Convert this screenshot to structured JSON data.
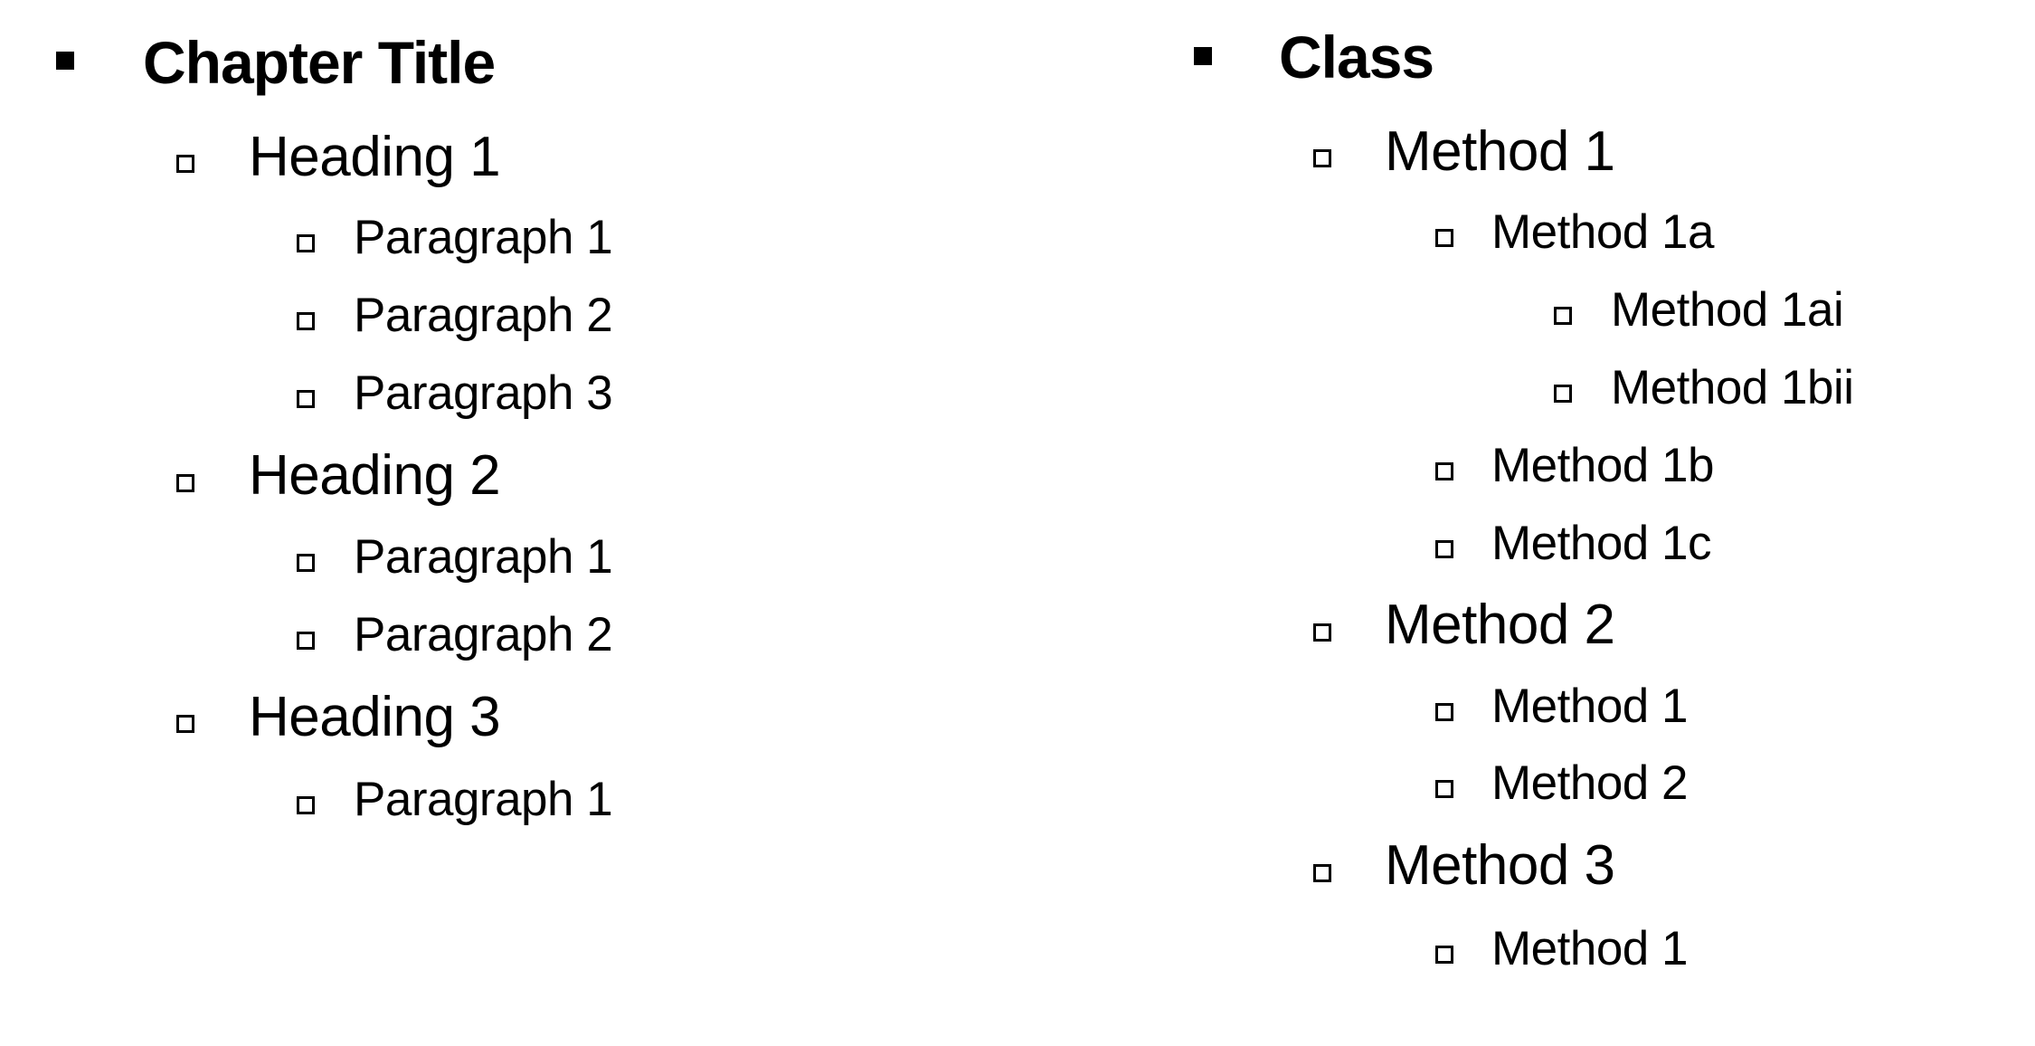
{
  "left_outline": {
    "title": "Chapter Title",
    "headings": [
      {
        "label": "Heading 1",
        "paragraphs": [
          "Paragraph 1",
          "Paragraph 2",
          "Paragraph 3"
        ]
      },
      {
        "label": "Heading 2",
        "paragraphs": [
          "Paragraph 1",
          "Paragraph 2"
        ]
      },
      {
        "label": "Heading 3",
        "paragraphs": [
          "Paragraph 1"
        ]
      }
    ]
  },
  "right_outline": {
    "title": "Class",
    "method_1": {
      "label": "Method 1",
      "sub": [
        "Method 1a",
        "Method 1b",
        "Method 1c"
      ],
      "sub_sub": [
        "Method 1ai",
        "Method 1bii"
      ]
    },
    "method_2": {
      "label": "Method 2",
      "sub": [
        "Method 1",
        "Method 2"
      ]
    },
    "method_3": {
      "label": "Method 3",
      "sub": [
        "Method 1"
      ]
    }
  },
  "icons": {
    "level_0_bullet": "filled-square-bullet-icon",
    "level_n_bullet": "hollow-square-bullet-icon"
  }
}
